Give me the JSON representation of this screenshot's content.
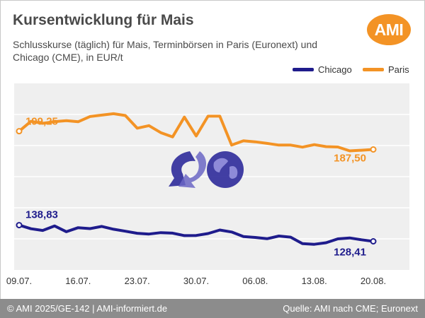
{
  "header": {
    "title": "Kursentwicklung für Mais",
    "subtitle": "Schlusskurse (täglich) für Mais, Terminbörsen in Paris (Euronext) und Chicago (CME), in EUR/t",
    "logo_text": "AMI"
  },
  "footer": {
    "left": "© AMI 2025/GE-142 | AMI-informiert.de",
    "right": "Quelle: AMI nach CME; Euronext"
  },
  "colors": {
    "paris": "#f39325",
    "chicago": "#1f1c8c",
    "plot_background": "#efefef",
    "footer_background": "#8c8c8c"
  },
  "chart_data": {
    "type": "line",
    "x_tick_labels": [
      "09.07.",
      "16.07.",
      "23.07.",
      "30.07.",
      "06.08.",
      "13.08.",
      "20.08."
    ],
    "x_days": [
      "09.07.",
      "10.07.",
      "11.07.",
      "14.07.",
      "15.07.",
      "16.07.",
      "17.07.",
      "18.07.",
      "21.07.",
      "22.07.",
      "23.07.",
      "24.07.",
      "25.07.",
      "28.07.",
      "29.07.",
      "30.07.",
      "31.07.",
      "01.08.",
      "04.08.",
      "05.08.",
      "06.08.",
      "07.08.",
      "08.08.",
      "11.08.",
      "12.08.",
      "13.08.",
      "14.08.",
      "15.08.",
      "18.08.",
      "19.08.",
      "20.08."
    ],
    "ylim": [
      110,
      230
    ],
    "grid": true,
    "legend_position": "top-right",
    "series": [
      {
        "name": "Chicago",
        "color": "#1f1c8c",
        "values": [
          138.83,
          136.5,
          135.4,
          138.3,
          134.6,
          137.2,
          136.6,
          138.0,
          136.2,
          134.9,
          133.6,
          133.1,
          134.0,
          133.7,
          132.1,
          132.2,
          133.4,
          135.7,
          134.4,
          131.5,
          130.9,
          130.1,
          131.8,
          131.1,
          126.9,
          126.5,
          127.5,
          130.0,
          130.6,
          129.4,
          128.41
        ],
        "start_label": "138,83",
        "end_label": "128,41"
      },
      {
        "name": "Paris",
        "color": "#f39325",
        "values": [
          199.25,
          205.6,
          204.3,
          205.4,
          206.0,
          205.3,
          208.7,
          209.6,
          210.5,
          209.3,
          201.2,
          202.8,
          198.3,
          195.6,
          208.3,
          196.2,
          208.9,
          208.9,
          190.3,
          193.1,
          192.4,
          191.4,
          190.3,
          190.3,
          189.0,
          190.6,
          189.3,
          189.1,
          186.6,
          187.0,
          187.5
        ],
        "start_label": "199,25",
        "end_label": "187,50"
      }
    ]
  }
}
